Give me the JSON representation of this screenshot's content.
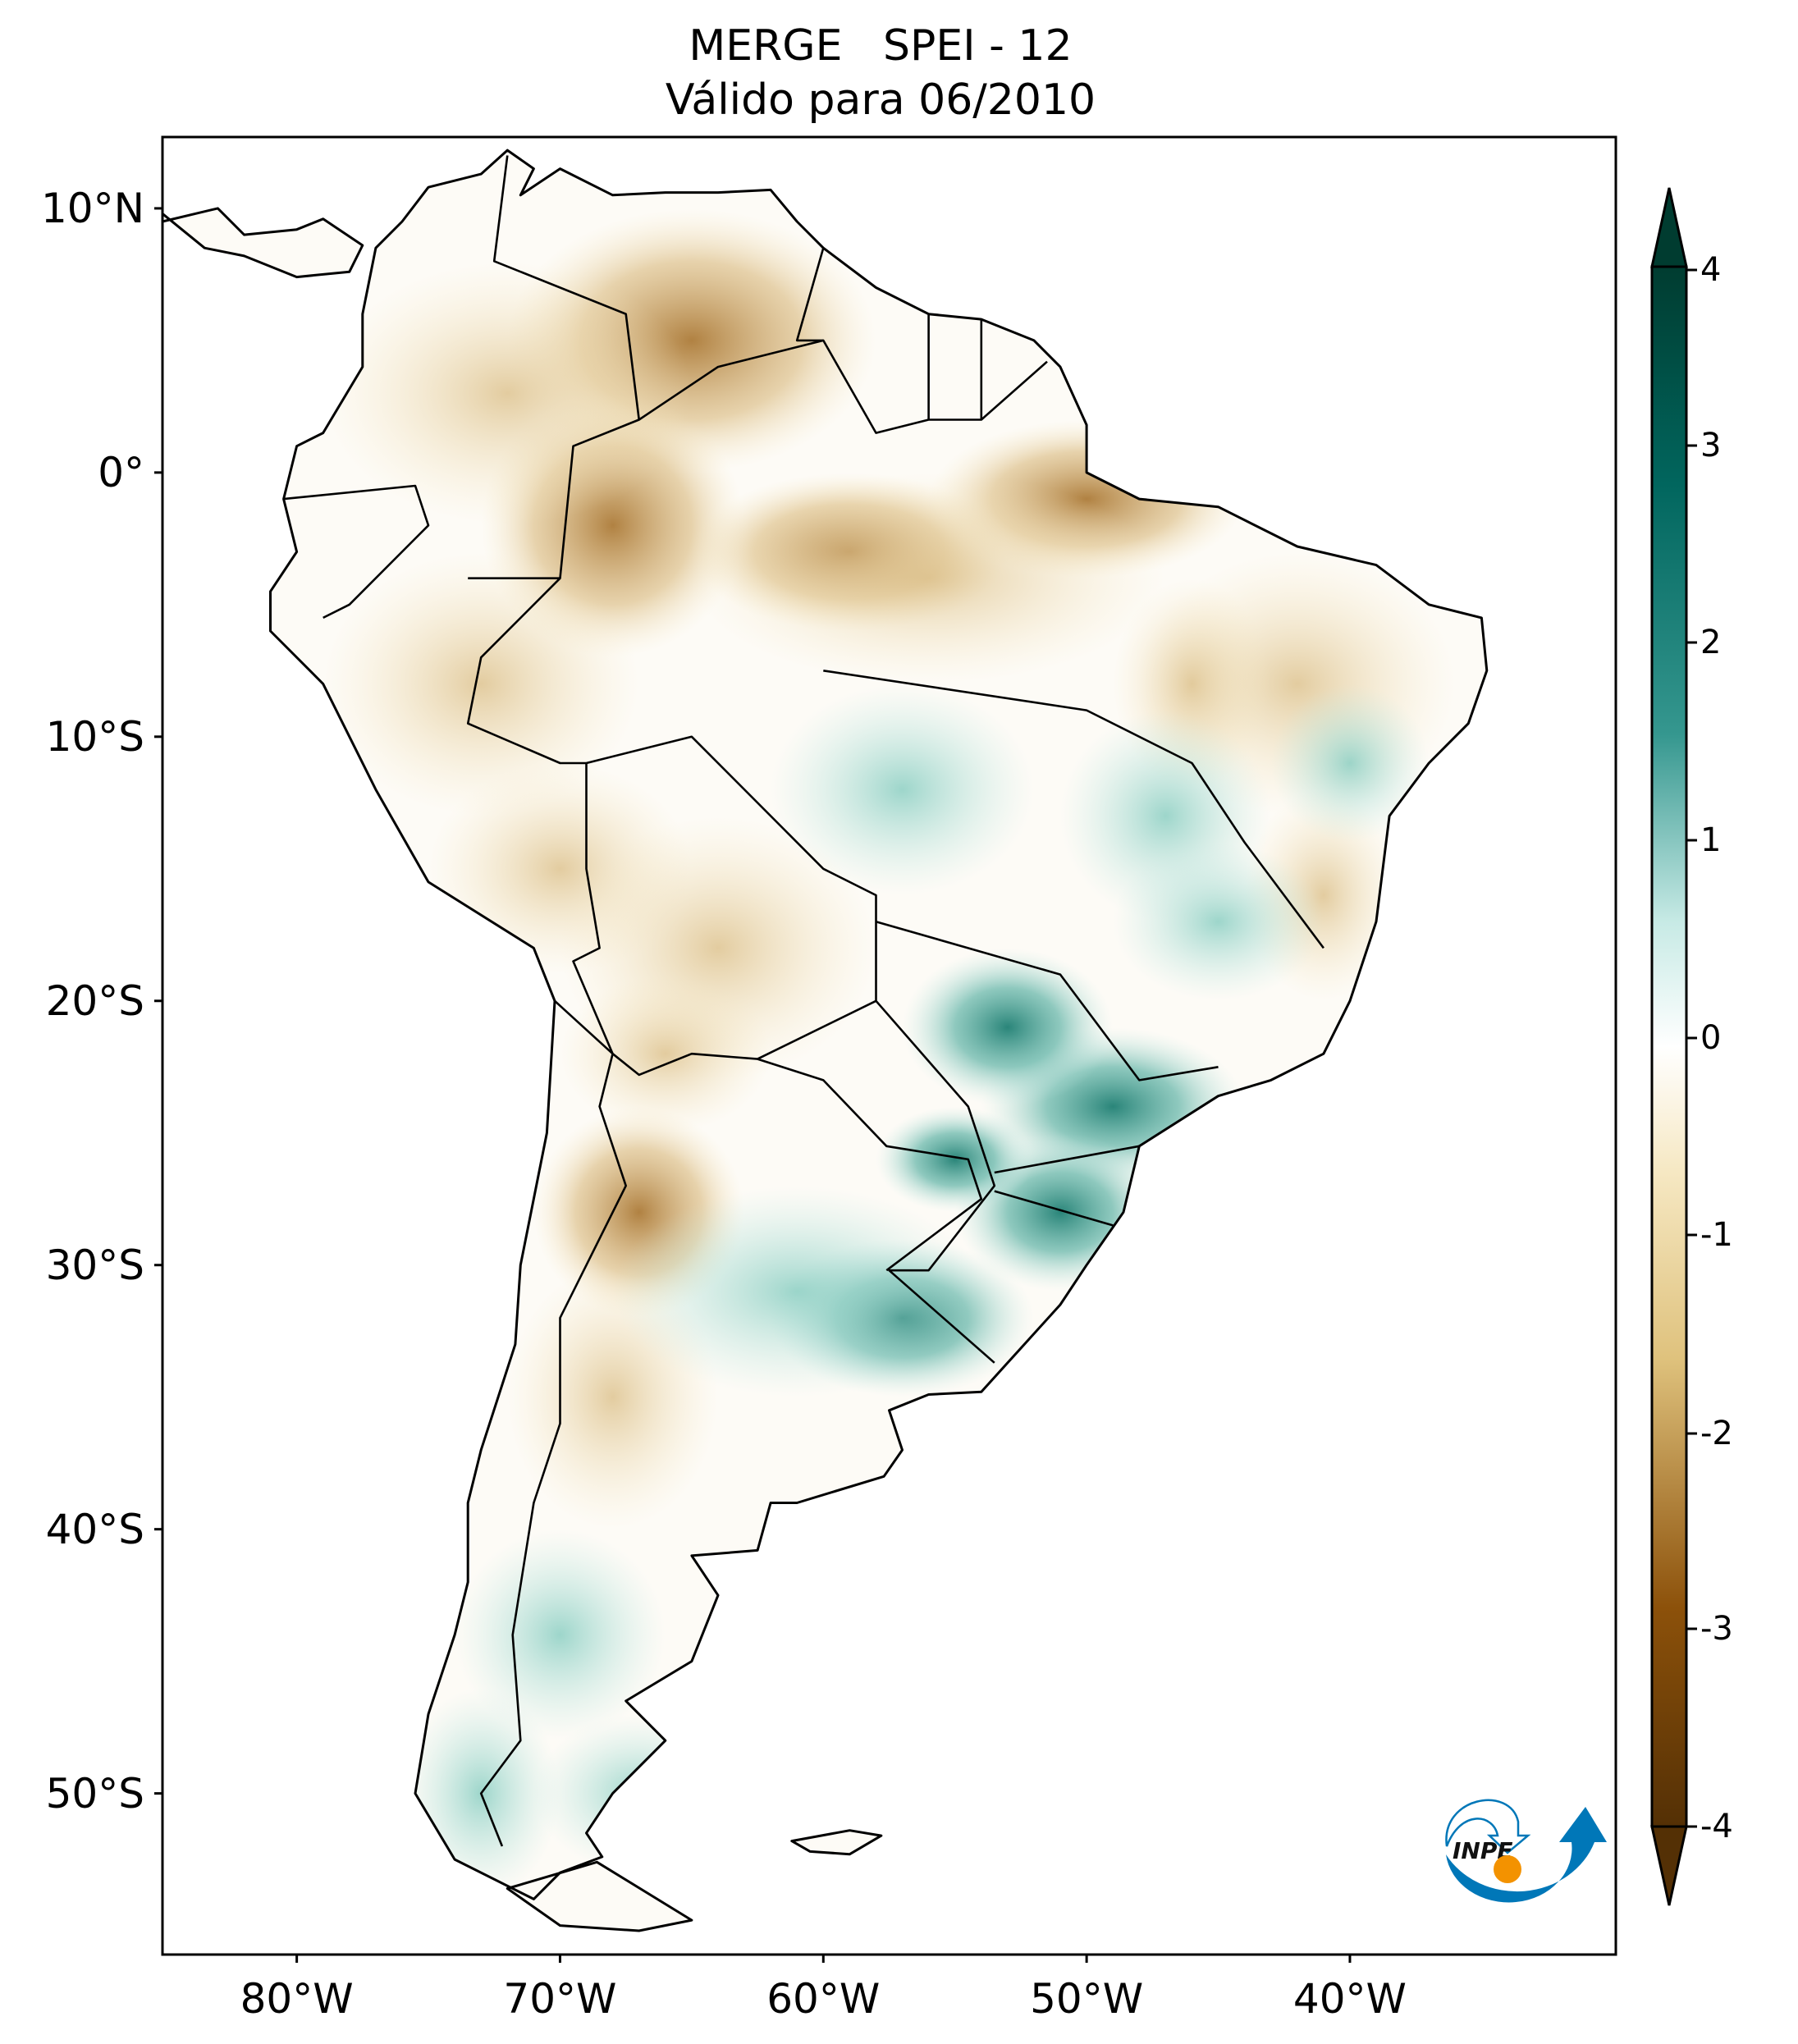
{
  "title": {
    "line1": "MERGE   SPEI - 12",
    "line2": "Válido para 06/2010"
  },
  "map": {
    "region": "South America",
    "projection": "PlateCarree",
    "lon_range": [
      -85.1,
      -29.9
    ],
    "lat_range": [
      -56.1,
      12.7
    ],
    "lon_ticks": [
      {
        "value": -80,
        "label": "80°W"
      },
      {
        "value": -70,
        "label": "70°W"
      },
      {
        "value": -60,
        "label": "60°W"
      },
      {
        "value": -50,
        "label": "50°W"
      },
      {
        "value": -40,
        "label": "40°W"
      }
    ],
    "lat_ticks": [
      {
        "value": 10,
        "label": "10°N"
      },
      {
        "value": 0,
        "label": "0°"
      },
      {
        "value": -10,
        "label": "10°S"
      },
      {
        "value": -20,
        "label": "20°S"
      },
      {
        "value": -30,
        "label": "30°S"
      },
      {
        "value": -40,
        "label": "40°S"
      },
      {
        "value": -50,
        "label": "50°S"
      }
    ],
    "borders": "countries and Brazilian states"
  },
  "colorbar": {
    "colormap": "BrBG",
    "range": [
      -4,
      4
    ],
    "extend": "both",
    "ticks": [
      "4",
      "3",
      "2",
      "1",
      "0",
      "-1",
      "-2",
      "-3",
      "-4"
    ],
    "colors": {
      "min": "#543005",
      "neg": "#c9974a",
      "zero": "#ffffff",
      "pos": "#3fa597",
      "max": "#003c30"
    }
  },
  "logo": {
    "text": "INPE",
    "colors": {
      "blue": "#0077b8",
      "orange": "#f39200"
    }
  }
}
